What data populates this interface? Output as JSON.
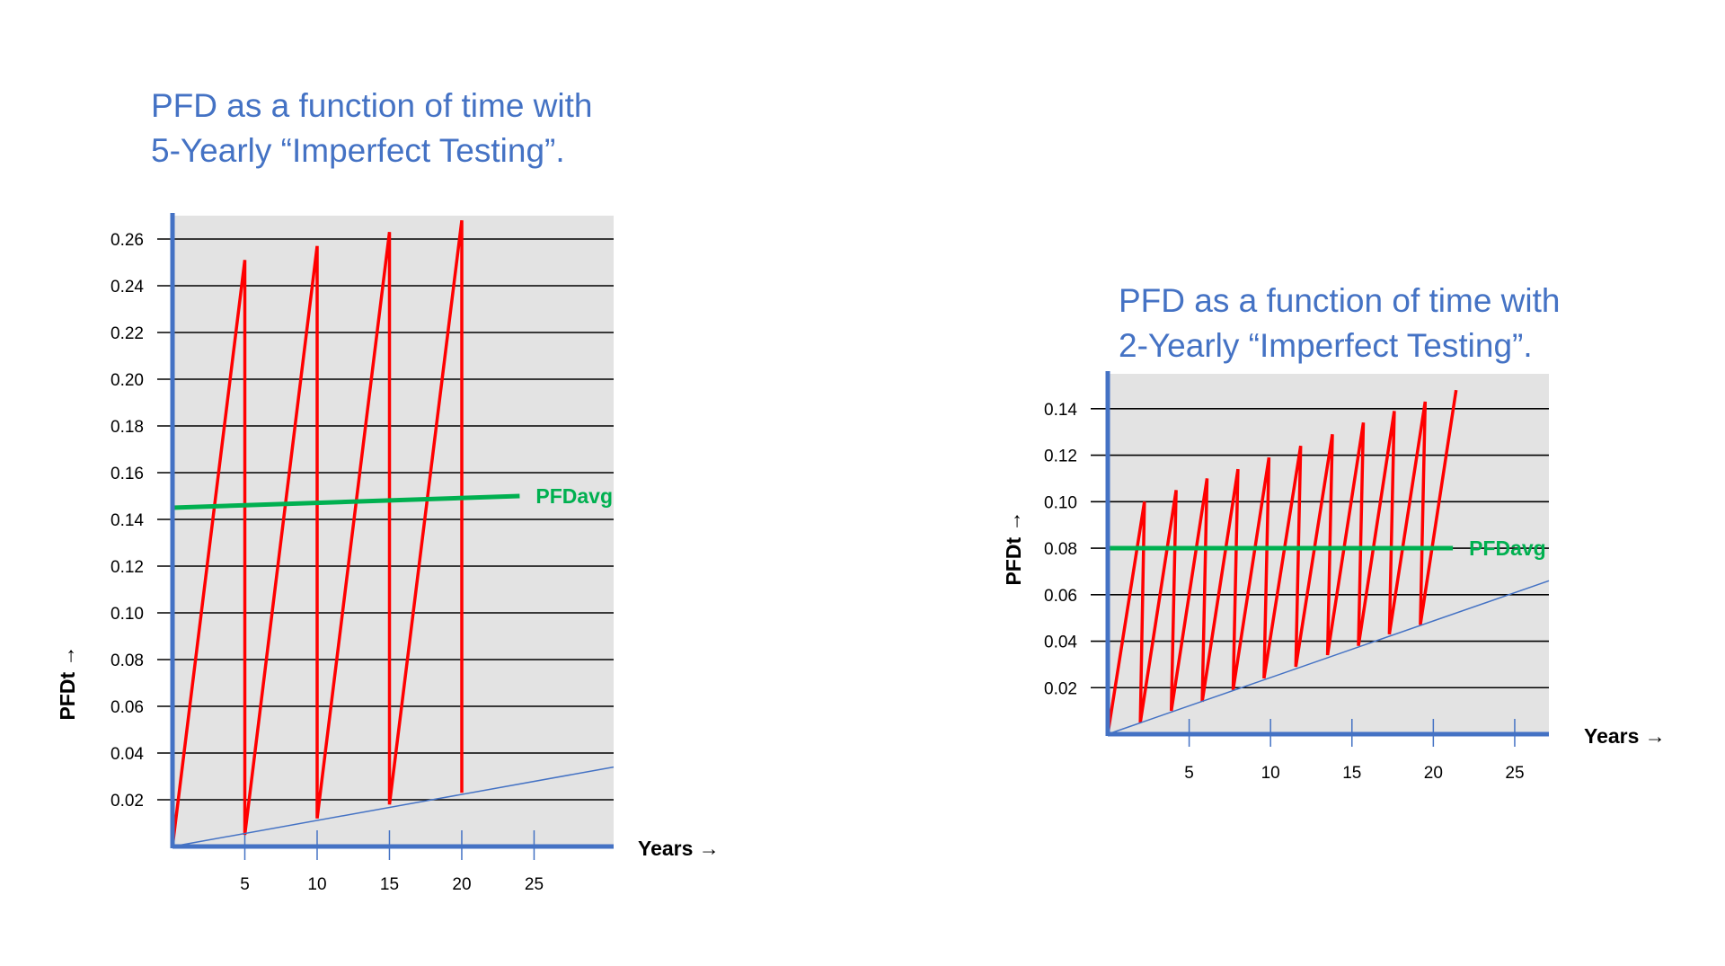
{
  "colors": {
    "axis": "#4472c4",
    "title": "#4472c4",
    "pfdt": "#ff0000",
    "pfdavg": "#00b050",
    "baseline": "#4472c4",
    "plot_background": "#e3e3e3",
    "grid": "#000000"
  },
  "chart_data": [
    {
      "type": "line",
      "title_lines": [
        "PFD as a function of time with",
        "5-Yearly “Imperfect Testing”."
      ],
      "xlabel": "Years →",
      "ylabel": "PFDt →",
      "xlim": [
        0,
        30.5
      ],
      "ylim": [
        0,
        0.27
      ],
      "grid": true,
      "x_ticks": [
        "5",
        "10",
        "15",
        "20",
        "25"
      ],
      "x_tick_values": [
        5,
        10,
        15,
        20,
        25
      ],
      "y_ticks": [
        "0.02",
        "0.04",
        "0.06",
        "0.08",
        "0.10",
        "0.12",
        "0.14",
        "0.16",
        "0.18",
        "0.20",
        "0.22",
        "0.24",
        "0.26"
      ],
      "y_tick_values": [
        0.02,
        0.04,
        0.06,
        0.08,
        0.1,
        0.12,
        0.14,
        0.16,
        0.18,
        0.2,
        0.22,
        0.24,
        0.26
      ],
      "series": [
        {
          "key": "pfdt",
          "points": [
            [
              0,
              0
            ],
            [
              5,
              0.251
            ],
            [
              5,
              0.005
            ],
            [
              10,
              0.257
            ],
            [
              10,
              0.012
            ],
            [
              15,
              0.263
            ],
            [
              15,
              0.018
            ],
            [
              20,
              0.268
            ],
            [
              20,
              0.023
            ]
          ]
        },
        {
          "key": "baseline",
          "points": [
            [
              0,
              0
            ],
            [
              30.5,
              0.034
            ]
          ]
        },
        {
          "key": "pfdavg",
          "name": "PFDavg",
          "points": [
            [
              0,
              0.145
            ],
            [
              24,
              0.15
            ]
          ]
        }
      ]
    },
    {
      "type": "line",
      "title_lines": [
        "PFD as a function of time with",
        "2-Yearly “Imperfect Testing”."
      ],
      "xlabel": "Years →",
      "ylabel": "PFDt →",
      "xlim": [
        0,
        27.1
      ],
      "ylim": [
        0,
        0.155
      ],
      "grid": true,
      "x_ticks": [
        "5",
        "10",
        "15",
        "20",
        "25"
      ],
      "x_tick_values": [
        5,
        10,
        15,
        20,
        25
      ],
      "y_ticks": [
        "0.02",
        "0.04",
        "0.06",
        "0.08",
        "0.10",
        "0.12",
        "0.14"
      ],
      "y_tick_values": [
        0.02,
        0.04,
        0.06,
        0.08,
        0.1,
        0.12,
        0.14
      ],
      "series": [
        {
          "key": "pfdt",
          "points": [
            [
              0,
              0
            ],
            [
              2.25,
              0.1
            ],
            [
              2.0,
              0.005
            ],
            [
              4.2,
              0.105
            ],
            [
              3.9,
              0.01
            ],
            [
              6.1,
              0.11
            ],
            [
              5.8,
              0.014
            ],
            [
              8.0,
              0.114
            ],
            [
              7.7,
              0.019
            ],
            [
              9.9,
              0.119
            ],
            [
              9.6,
              0.024
            ],
            [
              11.85,
              0.124
            ],
            [
              11.55,
              0.029
            ],
            [
              13.8,
              0.129
            ],
            [
              13.5,
              0.034
            ],
            [
              15.7,
              0.134
            ],
            [
              15.4,
              0.038
            ],
            [
              17.6,
              0.139
            ],
            [
              17.3,
              0.043
            ],
            [
              19.5,
              0.143
            ],
            [
              19.2,
              0.047
            ],
            [
              21.4,
              0.148
            ]
          ]
        },
        {
          "key": "baseline",
          "points": [
            [
              0,
              0
            ],
            [
              27.1,
              0.066
            ]
          ]
        },
        {
          "key": "pfdavg",
          "name": "PFDavg",
          "points": [
            [
              0,
              0.08
            ],
            [
              21.2,
              0.08
            ]
          ]
        }
      ]
    }
  ]
}
